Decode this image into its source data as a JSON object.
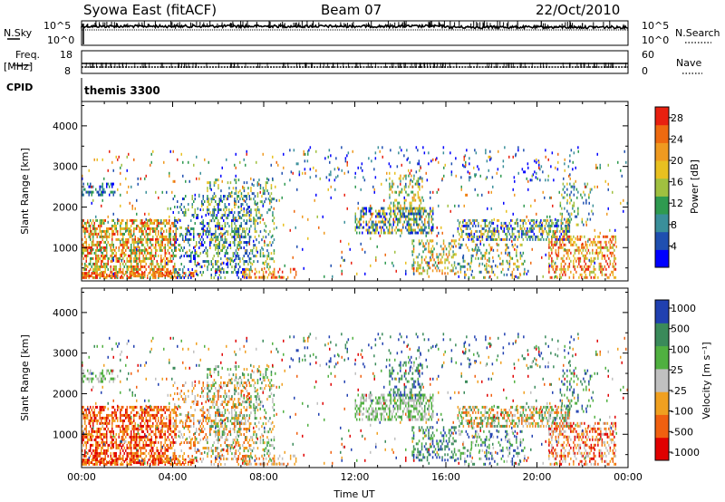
{
  "header": {
    "station": "Syowa East (fitACF)",
    "beam": "Beam 07",
    "date": "22/Oct/2010"
  },
  "noise_panel": {
    "left_label": "N.Sky",
    "right_label": "N.Search",
    "ticks_top": "10^5",
    "ticks_bottom": "10^0"
  },
  "freq_panel": {
    "left_label_1": "Freq.",
    "left_label_2": "[MHz]",
    "right_label": "Nave",
    "left_ticks": [
      "18",
      "8"
    ],
    "right_ticks": [
      "60",
      "0"
    ]
  },
  "cpid": {
    "label": "CPID",
    "value": "themis 3300"
  },
  "colors": {
    "power_scale": [
      "#0000ff",
      "#1f4fb0",
      "#3a8f9a",
      "#2f9a50",
      "#a0c040",
      "#e8c020",
      "#ef9a20",
      "#ee6a10",
      "#e82010"
    ],
    "velocity_scale": [
      "#e00000",
      "#f06010",
      "#f0a020",
      "#c0c0c0",
      "#50b040",
      "#3a8a5a",
      "#2040b0"
    ]
  },
  "chart_data": [
    {
      "type": "heatmap",
      "name": "power",
      "ylabel": "Slant Range [km]",
      "yticks": [
        "1000",
        "2000",
        "3000",
        "4000"
      ],
      "ylim": [
        180,
        4600
      ],
      "xlim_hours": [
        0,
        24
      ],
      "xticks": [
        "00:00",
        "04:00",
        "08:00",
        "12:00",
        "16:00",
        "20:00",
        "00:00"
      ],
      "colorbar": {
        "label": "Power [dB]",
        "ticks": [
          "4",
          "8",
          "12",
          "16",
          "20",
          "24",
          "28"
        ],
        "range": [
          0,
          30
        ]
      }
    },
    {
      "type": "heatmap",
      "name": "velocity",
      "ylabel": "Slant Range [km]",
      "yticks": [
        "1000",
        "2000",
        "3000",
        "4000"
      ],
      "ylim": [
        180,
        4600
      ],
      "xlim_hours": [
        0,
        24
      ],
      "xticks": [
        "00:00",
        "04:00",
        "08:00",
        "12:00",
        "16:00",
        "20:00",
        "00:00"
      ],
      "xlabel": "Time UT",
      "colorbar": {
        "label": "Velocity [m s⁻¹]",
        "ticks": [
          "1000",
          "500",
          "100",
          "25",
          "-25",
          "-100",
          "-500",
          "-1000"
        ]
      }
    }
  ]
}
